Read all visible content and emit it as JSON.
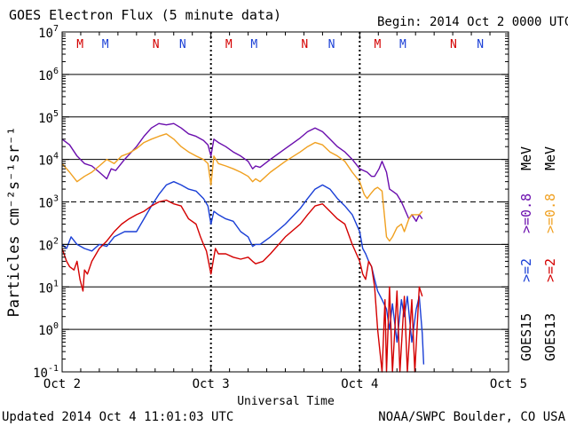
{
  "chart_data": {
    "type": "line",
    "title": "GOES Electron Flux (5 minute data)",
    "begin_label": "Begin: 2014 Oct 2 0000 UTC",
    "xlabel": "Universal Time",
    "ylabel": "Particles cm⁻²s⁻¹sr⁻¹",
    "x_tick_labels": [
      "Oct 2",
      "Oct 3",
      "Oct 4",
      "Oct 5"
    ],
    "xlim_days": [
      0,
      3
    ],
    "y_scale": "log",
    "ylim": [
      0.1,
      10000000
    ],
    "y_tick_labels": [
      {
        "base": "10",
        "exp": "7"
      },
      {
        "base": "10",
        "exp": "6"
      },
      {
        "base": "10",
        "exp": "5"
      },
      {
        "base": "10",
        "exp": "4"
      },
      {
        "base": "10",
        "exp": "3"
      },
      {
        "base": "10",
        "exp": "2"
      },
      {
        "base": "10",
        "exp": "1"
      },
      {
        "base": "10",
        "exp": "0"
      },
      {
        "base": "10",
        "exp": "-1"
      }
    ],
    "grid": "horizontal at each decade",
    "threshold_lines": [
      {
        "value": 1000,
        "style": "dashed"
      }
    ],
    "mn_markers": [
      {
        "label": "M",
        "day": 0.12,
        "color": "#d40000"
      },
      {
        "label": "M",
        "day": 0.29,
        "color": "#1a3fd6"
      },
      {
        "label": "N",
        "day": 0.63,
        "color": "#d40000"
      },
      {
        "label": "N",
        "day": 0.81,
        "color": "#1a3fd6"
      },
      {
        "label": "M",
        "day": 1.12,
        "color": "#d40000"
      },
      {
        "label": "M",
        "day": 1.29,
        "color": "#1a3fd6"
      },
      {
        "label": "N",
        "day": 1.63,
        "color": "#d40000"
      },
      {
        "label": "N",
        "day": 1.81,
        "color": "#1a3fd6"
      },
      {
        "label": "M",
        "day": 2.12,
        "color": "#d40000"
      },
      {
        "label": "M",
        "day": 2.29,
        "color": "#1a3fd6"
      },
      {
        "label": "N",
        "day": 2.63,
        "color": "#d40000"
      },
      {
        "label": "N",
        "day": 2.81,
        "color": "#1a3fd6"
      }
    ],
    "right_labels": [
      {
        "text": "GOES15",
        "color": "#000000"
      },
      {
        "text": ">=2",
        "color": "#1a3fd6"
      },
      {
        "text": ">=0.8",
        "color": "#6a0dad"
      },
      {
        "text": "MeV",
        "color": "#000000"
      },
      {
        "text": "GOES13",
        "color": "#000000"
      },
      {
        "text": ">=2",
        "color": "#d40000"
      },
      {
        "text": ">=0.8",
        "color": "#f0a020"
      },
      {
        "text": "MeV",
        "color": "#000000"
      }
    ],
    "series": [
      {
        "name": "GOES15 >=0.8 MeV",
        "color": "#6a0dad",
        "x": [
          0,
          0.05,
          0.1,
          0.15,
          0.2,
          0.25,
          0.3,
          0.33,
          0.36,
          0.42,
          0.5,
          0.55,
          0.6,
          0.65,
          0.7,
          0.75,
          0.8,
          0.85,
          0.9,
          0.95,
          0.98,
          1.0,
          1.02,
          1.05,
          1.1,
          1.15,
          1.2,
          1.25,
          1.28,
          1.3,
          1.33,
          1.4,
          1.5,
          1.6,
          1.65,
          1.7,
          1.75,
          1.8,
          1.85,
          1.9,
          1.95,
          2.0,
          2.05,
          2.08,
          2.1,
          2.13,
          2.15,
          2.18,
          2.2,
          2.22,
          2.25,
          2.28,
          2.3,
          2.33,
          2.35,
          2.38,
          2.4,
          2.42
        ],
        "y": [
          30000,
          22000,
          12000,
          8000,
          7000,
          5000,
          3500,
          6000,
          5500,
          10000,
          20000,
          35000,
          55000,
          70000,
          65000,
          70000,
          55000,
          40000,
          35000,
          28000,
          22000,
          12000,
          30000,
          25000,
          20000,
          15000,
          12000,
          9000,
          6000,
          7000,
          6500,
          10000,
          18000,
          32000,
          45000,
          55000,
          45000,
          30000,
          20000,
          15000,
          10000,
          6000,
          5000,
          4000,
          4000,
          6000,
          9000,
          5000,
          2000,
          1800,
          1500,
          1000,
          700,
          400,
          500,
          350,
          500,
          400
        ]
      },
      {
        "name": "GOES13 >=0.8 MeV",
        "color": "#f0a020",
        "x": [
          0,
          0.05,
          0.1,
          0.15,
          0.2,
          0.25,
          0.3,
          0.35,
          0.4,
          0.45,
          0.5,
          0.55,
          0.6,
          0.65,
          0.7,
          0.75,
          0.8,
          0.85,
          0.9,
          0.95,
          0.98,
          1.0,
          1.02,
          1.05,
          1.1,
          1.15,
          1.2,
          1.25,
          1.28,
          1.3,
          1.33,
          1.4,
          1.5,
          1.6,
          1.65,
          1.7,
          1.75,
          1.8,
          1.85,
          1.9,
          1.95,
          2.0,
          2.03,
          2.05,
          2.07,
          2.1,
          2.12,
          2.15,
          2.18,
          2.2,
          2.22,
          2.25,
          2.28,
          2.3,
          2.33,
          2.35,
          2.4,
          2.42
        ],
        "y": [
          8000,
          5000,
          3000,
          4000,
          5000,
          7000,
          10000,
          8000,
          12000,
          14000,
          18000,
          25000,
          30000,
          35000,
          40000,
          30000,
          20000,
          15000,
          12000,
          10000,
          8000,
          2500,
          12000,
          8000,
          7000,
          6000,
          5000,
          4000,
          3000,
          3500,
          3000,
          5000,
          9000,
          15000,
          20000,
          25000,
          22000,
          15000,
          12000,
          9000,
          5000,
          3000,
          1500,
          1200,
          1500,
          2000,
          2200,
          1800,
          150,
          120,
          150,
          250,
          300,
          200,
          400,
          500,
          500,
          600
        ]
      },
      {
        "name": "GOES15 >=2 MeV",
        "color": "#1a3fd6",
        "x": [
          0,
          0.03,
          0.06,
          0.1,
          0.15,
          0.2,
          0.25,
          0.3,
          0.35,
          0.42,
          0.5,
          0.55,
          0.6,
          0.65,
          0.7,
          0.75,
          0.8,
          0.85,
          0.9,
          0.95,
          0.98,
          1.0,
          1.02,
          1.05,
          1.1,
          1.15,
          1.2,
          1.25,
          1.28,
          1.3,
          1.33,
          1.4,
          1.5,
          1.6,
          1.65,
          1.7,
          1.75,
          1.8,
          1.85,
          1.9,
          1.95,
          2.0,
          2.02,
          2.04,
          2.06,
          2.08,
          2.1,
          2.12,
          2.15,
          2.18,
          2.2,
          2.22,
          2.25,
          2.28,
          2.3,
          2.32,
          2.35,
          2.38,
          2.4,
          2.42,
          2.43
        ],
        "y": [
          100,
          80,
          150,
          100,
          80,
          70,
          100,
          90,
          150,
          200,
          200,
          400,
          800,
          1500,
          2500,
          3000,
          2500,
          2000,
          1800,
          1200,
          800,
          300,
          600,
          500,
          400,
          350,
          200,
          150,
          90,
          100,
          100,
          150,
          300,
          700,
          1200,
          2000,
          2500,
          2000,
          1200,
          800,
          500,
          200,
          80,
          60,
          40,
          30,
          15,
          8,
          5,
          3,
          1,
          4,
          0.5,
          5,
          2,
          6,
          0.5,
          3,
          6,
          0.8,
          0.15
        ]
      },
      {
        "name": "GOES13 >=2 MeV",
        "color": "#d40000",
        "x": [
          0,
          0.03,
          0.05,
          0.08,
          0.1,
          0.12,
          0.14,
          0.15,
          0.17,
          0.2,
          0.25,
          0.3,
          0.35,
          0.4,
          0.45,
          0.5,
          0.55,
          0.6,
          0.65,
          0.7,
          0.75,
          0.8,
          0.85,
          0.9,
          0.93,
          0.95,
          0.97,
          1.0,
          1.03,
          1.05,
          1.1,
          1.15,
          1.2,
          1.25,
          1.28,
          1.3,
          1.35,
          1.4,
          1.5,
          1.6,
          1.65,
          1.7,
          1.75,
          1.8,
          1.85,
          1.9,
          1.95,
          2.0,
          2.02,
          2.04,
          2.06,
          2.08,
          2.1,
          2.12,
          2.15,
          2.17,
          2.18,
          2.2,
          2.22,
          2.25,
          2.27,
          2.3,
          2.32,
          2.35,
          2.37,
          2.4,
          2.42
        ],
        "y": [
          80,
          40,
          30,
          25,
          40,
          15,
          8,
          25,
          20,
          40,
          80,
          120,
          200,
          300,
          400,
          500,
          600,
          800,
          1000,
          1100,
          900,
          800,
          400,
          300,
          150,
          100,
          70,
          20,
          80,
          60,
          60,
          50,
          45,
          50,
          40,
          35,
          40,
          60,
          150,
          300,
          500,
          800,
          900,
          600,
          400,
          300,
          100,
          40,
          20,
          15,
          40,
          30,
          10,
          1,
          0.1,
          5,
          0.1,
          10,
          0.1,
          8,
          0.1,
          6,
          0.1,
          5,
          0.1,
          10,
          6
        ]
      }
    ]
  },
  "footer": {
    "updated": "Updated 2014 Oct  4 11:01:03 UTC",
    "credit": "NOAA/SWPC Boulder, CO USA"
  }
}
